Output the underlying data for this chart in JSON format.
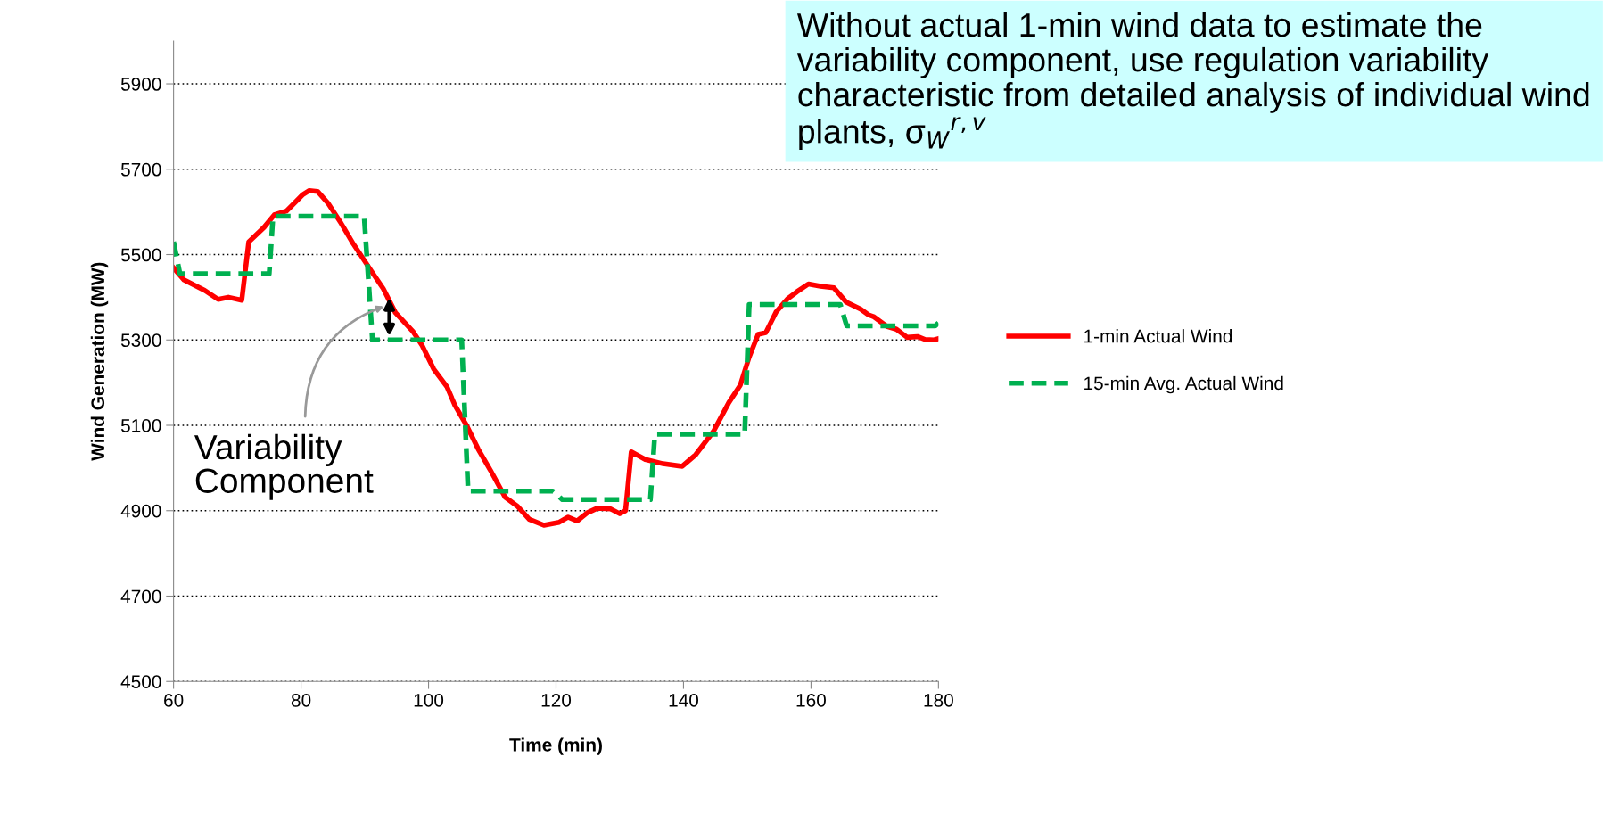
{
  "chart_data": {
    "type": "line",
    "xlabel": "Time (min)",
    "ylabel": "Wind Generation (MW)",
    "xlim": [
      60,
      180
    ],
    "xticks": [
      60,
      80,
      100,
      120,
      140,
      160,
      180
    ],
    "ylim": [
      4500,
      6000
    ],
    "yticks": [
      4500,
      4700,
      4900,
      5100,
      5300,
      5500,
      5700,
      5900
    ],
    "grid": "y",
    "legend": "right",
    "marker": "none",
    "series": [
      {
        "name": "1-min Actual Wind",
        "color": "#ff0000",
        "line_style": "solid",
        "x": [
          60.0,
          61.6,
          64.9,
          67.0,
          68.6,
          70.7,
          71.8,
          74.2,
          75.8,
          77.7,
          79.3,
          80.3,
          81.3,
          82.6,
          84.2,
          86.3,
          88.2,
          91.0,
          92.9,
          94.8,
          97.6,
          99.0,
          100.8,
          102.9,
          104.1,
          106.0,
          107.8,
          109.7,
          112.0,
          113.9,
          115.8,
          118.1,
          120.5,
          121.9,
          123.3,
          124.9,
          126.5,
          128.6,
          130.0,
          130.9,
          131.8,
          134.0,
          136.8,
          139.8,
          141.9,
          144.7,
          147.1,
          148.9,
          150.3,
          151.7,
          152.9,
          154.5,
          156.3,
          157.8,
          159.6,
          161.5,
          163.6,
          165.5,
          167.8,
          169.0,
          169.9,
          172.0,
          173.4,
          175.1,
          176.7,
          177.9,
          179.3,
          180.0
        ],
        "values": [
          5469,
          5441,
          5416,
          5395,
          5400,
          5393,
          5530,
          5564,
          5593,
          5602,
          5626,
          5641,
          5650,
          5648,
          5621,
          5573,
          5525,
          5462,
          5420,
          5364,
          5319,
          5287,
          5232,
          5190,
          5148,
          5099,
          5044,
          4995,
          4932,
          4911,
          4880,
          4866,
          4873,
          4885,
          4876,
          4895,
          4906,
          4904,
          4893,
          4900,
          5038,
          5020,
          5010,
          5004,
          5031,
          5086,
          5153,
          5194,
          5260,
          5313,
          5317,
          5365,
          5396,
          5413,
          5431,
          5426,
          5422,
          5389,
          5372,
          5359,
          5354,
          5331,
          5325,
          5306,
          5308,
          5301,
          5300,
          5303
        ]
      },
      {
        "name": "15-min Avg. Actual Wind",
        "color": "#00b050",
        "line_style": "dashed",
        "x": [
          60,
          61,
          75,
          75.6,
          89.9,
          91.2,
          105.2,
          106.2,
          119.5,
          121,
          134.8,
          135.5,
          149.6,
          150.3,
          164.6,
          165.6,
          179.5,
          180
        ],
        "values": [
          5530,
          5455,
          5455,
          5590,
          5590,
          5300,
          5300,
          4946,
          4946,
          4926,
          4926,
          5079,
          5079,
          5383,
          5383,
          5333,
          5333,
          5340
        ]
      }
    ],
    "annotations": [
      "Variability Component",
      "Without actual 1-min wind data to estimate the variability component, use regulation variability characteristic from detailed analysis of individual wind plants, σ$_{W}$$^{r,v}$"
    ]
  }
}
